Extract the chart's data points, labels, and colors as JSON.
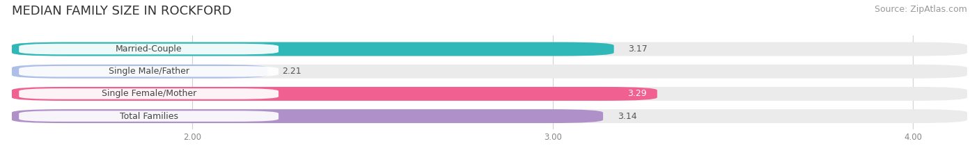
{
  "title": "MEDIAN FAMILY SIZE IN ROCKFORD",
  "source": "Source: ZipAtlas.com",
  "categories": [
    "Married-Couple",
    "Single Male/Father",
    "Single Female/Mother",
    "Total Families"
  ],
  "values": [
    3.17,
    2.21,
    3.29,
    3.14
  ],
  "bar_colors": [
    "#30b8b8",
    "#adbfe8",
    "#f06090",
    "#b090c8"
  ],
  "bar_bg_color": "#ebebeb",
  "value_in_bar": [
    false,
    false,
    true,
    false
  ],
  "xlim_min": 1.5,
  "xlim_max": 4.15,
  "xticks": [
    2.0,
    3.0,
    4.0
  ],
  "xtick_labels": [
    "2.00",
    "3.00",
    "4.00"
  ],
  "title_fontsize": 13,
  "source_fontsize": 9,
  "label_fontsize": 9,
  "value_fontsize": 9,
  "bar_height": 0.62,
  "label_pill_color": "#ffffff"
}
